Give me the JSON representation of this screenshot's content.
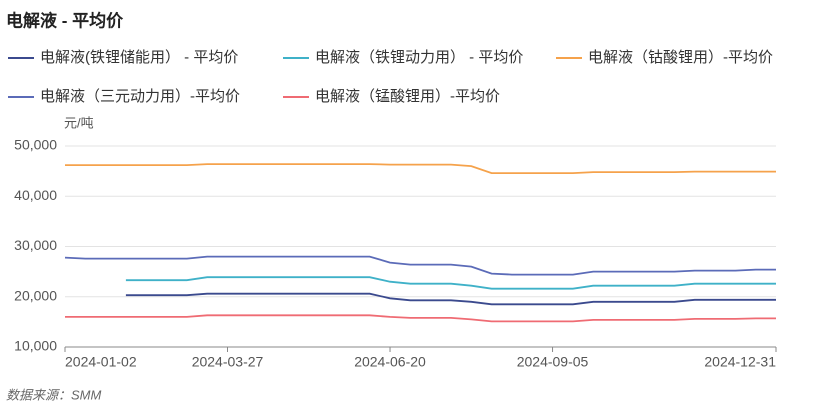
{
  "chart_data": {
    "type": "line",
    "title": "电解液 - 平均价",
    "y_axis_label": "元/吨",
    "source": "数据来源：SMM",
    "categories": [
      "2024-01-02",
      null,
      null,
      null,
      null,
      null,
      null,
      null,
      "2024-03-27",
      null,
      null,
      null,
      null,
      null,
      null,
      null,
      "2024-06-20",
      null,
      null,
      null,
      null,
      null,
      null,
      null,
      "2024-09-05",
      null,
      null,
      null,
      null,
      null,
      null,
      null,
      null,
      null,
      null,
      "2024-12-31"
    ],
    "ylim": [
      10000,
      50000
    ],
    "yticks": [
      {
        "value": 10000,
        "label": "10,000"
      },
      {
        "value": 20000,
        "label": "20,000"
      },
      {
        "value": 30000,
        "label": "30,000"
      },
      {
        "value": 40000,
        "label": "40,000"
      },
      {
        "value": 50000,
        "label": "50,000"
      }
    ],
    "grid": true,
    "series": [
      {
        "name": "电解液(铁锂储能用） - 平均价",
        "color": "#3b4a8e",
        "values": [
          null,
          null,
          null,
          20300,
          20300,
          20300,
          20300,
          20600,
          20600,
          20600,
          20600,
          20600,
          20600,
          20600,
          20600,
          20600,
          19700,
          19300,
          19300,
          19300,
          19000,
          18500,
          18500,
          18500,
          18500,
          18500,
          19000,
          19000,
          19000,
          19000,
          19000,
          19400,
          19400,
          19400,
          19400,
          19400
        ]
      },
      {
        "name": "电解液（铁锂动力用） - 平均价",
        "color": "#3fb1c8",
        "values": [
          null,
          null,
          null,
          23300,
          23300,
          23300,
          23300,
          23900,
          23900,
          23900,
          23900,
          23900,
          23900,
          23900,
          23900,
          23900,
          23000,
          22600,
          22600,
          22600,
          22200,
          21600,
          21600,
          21600,
          21600,
          21600,
          22200,
          22200,
          22200,
          22200,
          22200,
          22600,
          22600,
          22600,
          22600,
          22600
        ]
      },
      {
        "name": "电解液（钴酸锂用）-平均价",
        "color": "#f5a24b",
        "values": [
          46200,
          46200,
          46200,
          46200,
          46200,
          46200,
          46200,
          46400,
          46400,
          46400,
          46400,
          46400,
          46400,
          46400,
          46400,
          46400,
          46300,
          46300,
          46300,
          46300,
          46000,
          44600,
          44600,
          44600,
          44600,
          44600,
          44800,
          44800,
          44800,
          44800,
          44800,
          44900,
          44900,
          44900,
          44900,
          44900
        ]
      },
      {
        "name": "电解液（三元动力用）-平均价",
        "color": "#5b6bb8",
        "values": [
          27800,
          27600,
          27600,
          27600,
          27600,
          27600,
          27600,
          28000,
          28000,
          28000,
          28000,
          28000,
          28000,
          28000,
          28000,
          28000,
          26800,
          26400,
          26400,
          26400,
          26000,
          24600,
          24400,
          24400,
          24400,
          24400,
          25000,
          25000,
          25000,
          25000,
          25000,
          25200,
          25200,
          25200,
          25400,
          25400
        ]
      },
      {
        "name": "电解液（锰酸锂用）-平均价",
        "color": "#ef6b73",
        "values": [
          16000,
          16000,
          16000,
          16000,
          16000,
          16000,
          16000,
          16300,
          16300,
          16300,
          16300,
          16300,
          16300,
          16300,
          16300,
          16300,
          16000,
          15800,
          15800,
          15800,
          15500,
          15100,
          15100,
          15100,
          15100,
          15100,
          15400,
          15400,
          15400,
          15400,
          15400,
          15600,
          15600,
          15600,
          15700,
          15700
        ]
      }
    ]
  }
}
